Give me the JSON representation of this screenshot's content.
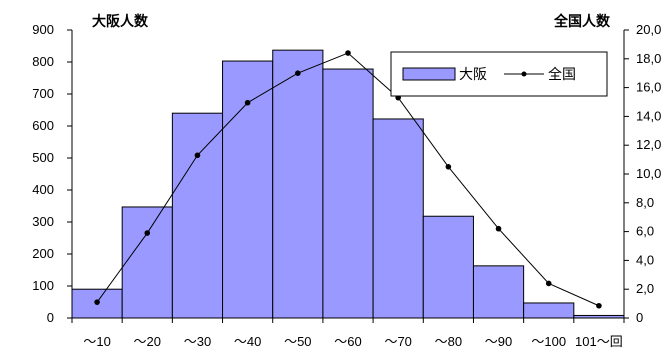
{
  "chart_data": {
    "type": "bar",
    "categories": [
      "～10",
      "～20",
      "～30",
      "～40",
      "～50",
      "～60",
      "～70",
      "～80",
      "～90",
      "～100",
      "101～回"
    ],
    "series": [
      {
        "name": "大阪",
        "kind": "bar",
        "axis": "left",
        "values": [
          90,
          347,
          640,
          803,
          837,
          778,
          622,
          318,
          163,
          47,
          8
        ]
      },
      {
        "name": "全国",
        "kind": "line",
        "axis": "right",
        "values": [
          1100,
          5900,
          11300,
          14950,
          17000,
          18400,
          15300,
          10500,
          6200,
          2400,
          850
        ]
      }
    ],
    "ylabel_left": "大阪人数",
    "ylabel_right": "全国人数",
    "ylim_left": [
      0,
      900
    ],
    "yticks_left": [
      0,
      100,
      200,
      300,
      400,
      500,
      600,
      700,
      800,
      900
    ],
    "ylim_right": [
      0,
      20000
    ],
    "yticks_right": [
      "0",
      "2,0",
      "4,0",
      "6,0",
      "8,0",
      "10,0",
      "12,0",
      "14,0",
      "16,0",
      "18,0",
      "20,0"
    ],
    "legend_position": "top-right",
    "grid": false,
    "colors": {
      "bar_fill": "#9999ff",
      "bar_stroke": "#000000",
      "line": "#000000"
    }
  }
}
